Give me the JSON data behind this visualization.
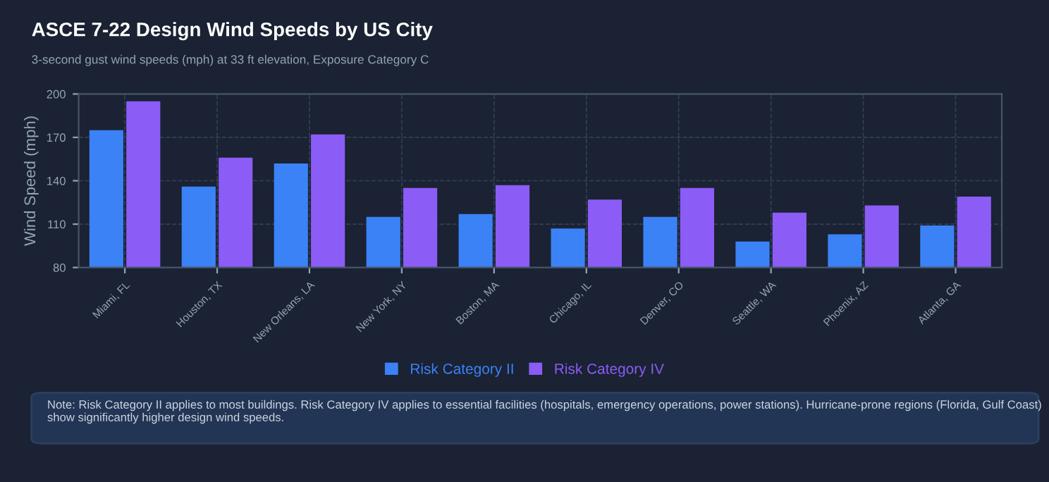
{
  "chart_data": {
    "type": "bar",
    "title": "ASCE 7-22 Design Wind Speeds by US City",
    "subtitle": "3-second gust wind speeds (mph) at 33 ft elevation, Exposure Category C",
    "ylabel": "Wind Speed (mph)",
    "categories": [
      "Miami, FL",
      "Houston, TX",
      "New Orleans, LA",
      "New York, NY",
      "Boston, MA",
      "Chicago, IL",
      "Denver, CO",
      "Seattle, WA",
      "Phoenix, AZ",
      "Atlanta, GA"
    ],
    "series": [
      {
        "name": "Risk Category II",
        "color": "#3b82f6",
        "values": [
          175,
          136,
          152,
          115,
          117,
          107,
          115,
          98,
          103,
          109
        ]
      },
      {
        "name": "Risk Category IV",
        "color": "#8b5cf6",
        "values": [
          195,
          156,
          172,
          135,
          137,
          127,
          135,
          118,
          123,
          129
        ]
      }
    ],
    "ylim": [
      80,
      200
    ],
    "yticks": [
      80,
      110,
      140,
      170,
      200
    ],
    "grid": true,
    "legend": "bottom",
    "annotations": [
      "Note: Risk Category II applies to most buildings. Risk Category IV applies to essential facilities (hospitals, emergency operations, power stations). Hurricane-prone regions (Florida, Gulf Coast) show significantly higher design wind speeds."
    ]
  }
}
